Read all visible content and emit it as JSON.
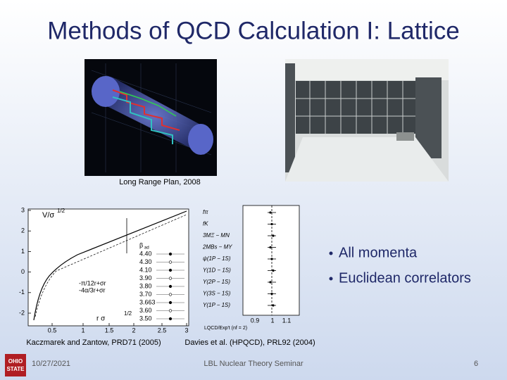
{
  "title": "Methods of QCD Calculation I: Lattice",
  "images": [
    {
      "caption": "Long Range Plan, 2008"
    }
  ],
  "plots": [
    {
      "ylabel": "V/σ",
      "ylabel_exp": "1/2",
      "xlabel": "r σ",
      "xlabel_exp": "1/2",
      "yticks": [
        "3",
        "2",
        "1",
        "0",
        "-1",
        "-2"
      ],
      "xticks": [
        "0.5",
        "1",
        "1.5",
        "2",
        "2.5",
        "3"
      ],
      "legend_title": "β",
      "legend_title_sub": "ad",
      "legend": [
        "4.40",
        "4.30",
        "4.10",
        "3.90",
        "3.80",
        "3.70",
        "3.663",
        "3.60",
        "3.50"
      ],
      "fits": [
        "-π/12r+σr",
        "-4α/3r+σr"
      ],
      "caption": "Kaczmarek and Zantow, PRD71 (2005)"
    },
    {
      "labels": [
        "fπ",
        "fK",
        "3MΞ − MN",
        "2MBs − MΥ",
        "ψ(1P − 1S)",
        "Υ(1D − 1S)",
        "Υ(2P − 1S)",
        "Υ(3S − 1S)",
        "Υ(1P − 1S)"
      ],
      "xticks": [
        "0.9",
        "1",
        "1.1"
      ],
      "xlabel": "LQCD/Exp't (nf = 2)",
      "caption": "Davies et al. (HPQCD), PRL92 (2004)"
    }
  ],
  "bullets": [
    "All momenta",
    "Euclidean correlators"
  ],
  "footer": {
    "logo": [
      "OHIO",
      "STATE"
    ],
    "date": "10/27/2021",
    "center": "LBL Nuclear Theory Seminar",
    "page": "6"
  }
}
